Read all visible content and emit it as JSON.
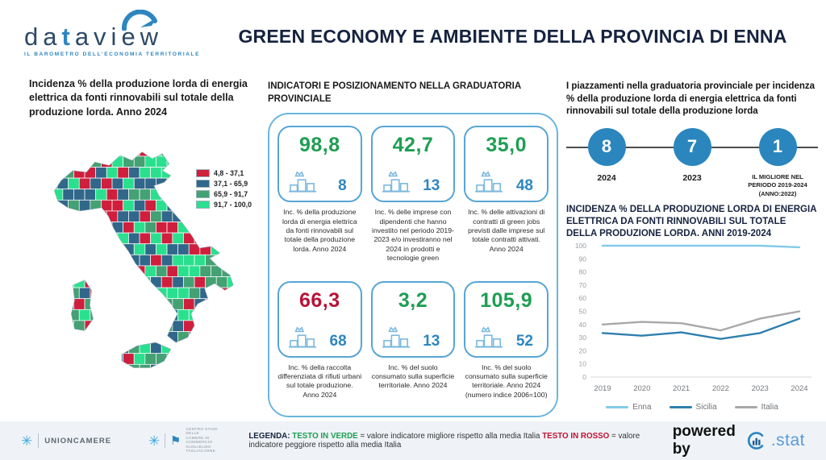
{
  "colors": {
    "accent_blue": "#2b86be",
    "card_border": "#57a6d4",
    "green": "#1e9e53",
    "red": "#b81237",
    "navy": "#16233f"
  },
  "header": {
    "logo_name_pre": "da",
    "logo_name_t": "t",
    "logo_name_post": "aview",
    "logo_tagline": "IL BAROMETRO DELL'ECONOMIA TERRITORIALE",
    "title": "GREEN ECONOMY E AMBIENTE DELLA PROVINCIA DI ENNA"
  },
  "map_panel": {
    "heading": "Incidenza % della produzione lorda di energia elettrica da fonti rinnovabili sul totale della produzione lorda. Anno 2024",
    "legend": [
      {
        "range": "4,8 - 37,1",
        "color": "#cf1f3d"
      },
      {
        "range": "37,1 - 65,9",
        "color": "#30678a"
      },
      {
        "range": "65,9 - 91,7",
        "color": "#43a173"
      },
      {
        "range": "91,7 - 100,0",
        "color": "#2ae08e"
      }
    ]
  },
  "indicators_panel": {
    "heading": "INDICATORI E POSIZIONAMENTO NELLA GRADUATORIA PROVINCIALE",
    "cards": [
      {
        "value": "98,8",
        "rank": "8",
        "value_color": "#1e9e53",
        "caption": "Inc. % della produzione lorda di energia elettrica da fonti rinnovabili sul totale della produzione lorda. Anno 2024"
      },
      {
        "value": "42,7",
        "rank": "13",
        "value_color": "#1e9e53",
        "caption": "Inc. % delle imprese con dipendenti che hanno investito nel periodo 2019-2023 e/o investiranno nel 2024 in prodotti e tecnologie green"
      },
      {
        "value": "35,0",
        "rank": "48",
        "value_color": "#1e9e53",
        "caption": "Inc. % delle attivazioni di contratti di green jobs previsti dalle imprese sul totale contratti attivati. Anno 2024"
      },
      {
        "value": "66,3",
        "rank": "68",
        "value_color": "#b81237",
        "caption": "Inc. % della raccolta differenziata di rifiuti urbani sul totale produzione. Anno 2024"
      },
      {
        "value": "3,2",
        "rank": "13",
        "value_color": "#1e9e53",
        "caption": "Inc. % del suolo consumato sulla superficie territoriale. Anno 2024"
      },
      {
        "value": "105,9",
        "rank": "52",
        "value_color": "#1e9e53",
        "caption": "Inc. % del suolo consumato sulla superficie territoriale. Anno 2024 (numero indice 2006=100)"
      }
    ]
  },
  "ranking_panel": {
    "heading": "I piazzamenti nella graduatoria provinciale per incidenza % della produzione lorda di energia elettrica da fonti rinnovabili sul totale della produzione lorda",
    "milestones": [
      {
        "rank": "8",
        "label": "2024"
      },
      {
        "rank": "7",
        "label": "2023"
      },
      {
        "rank": "1",
        "label": "IL MIGLIORE NEL PERIODO 2019-2024 (ANNO:2022)"
      }
    ]
  },
  "chart_data": {
    "type": "line",
    "title": "INCIDENZA % DELLA PRODUZIONE LORDA DI ENERGIA ELETTRICA DA FONTI RINNOVABILI SUL TOTALE DELLA PRODUZIONE LORDA. ANNI 2019-2024",
    "categories": [
      "2019",
      "2020",
      "2021",
      "2022",
      "2023",
      "2024"
    ],
    "series": [
      {
        "name": "Enna",
        "color": "#82cbe8",
        "values": [
          100,
          100,
          100,
          100,
          100,
          98.8
        ]
      },
      {
        "name": "Sicilia",
        "color": "#2e7fae",
        "values": [
          33.5,
          31.5,
          34,
          29,
          33.5,
          44.5
        ]
      },
      {
        "name": "Italia",
        "color": "#a8a8a8",
        "values": [
          40,
          42,
          41,
          35.5,
          44.5,
          50
        ]
      }
    ],
    "xlabel": "",
    "ylabel": "",
    "ylim": [
      0,
      100
    ],
    "ytick_step": 10,
    "grid": false,
    "legend_position": "bottom"
  },
  "footer": {
    "unioncamere": "UNIONCAMERE",
    "tagliacarne_lines": [
      "CENTRO STUDI DELLE",
      "CAMERE DI COMMERCIO",
      "GUGLIELMO TAGLIACARNE"
    ],
    "legend_label": "LEGENDA:",
    "green_term": "TESTO IN VERDE",
    "green_def": "= valore indicatore migliore rispetto alla media Italia",
    "red_term": "TESTO IN ROSSO",
    "red_def": "= valore indicatore peggiore rispetto alla media Italia",
    "powered_by": "powered by",
    "stat_logo": ".stat"
  }
}
